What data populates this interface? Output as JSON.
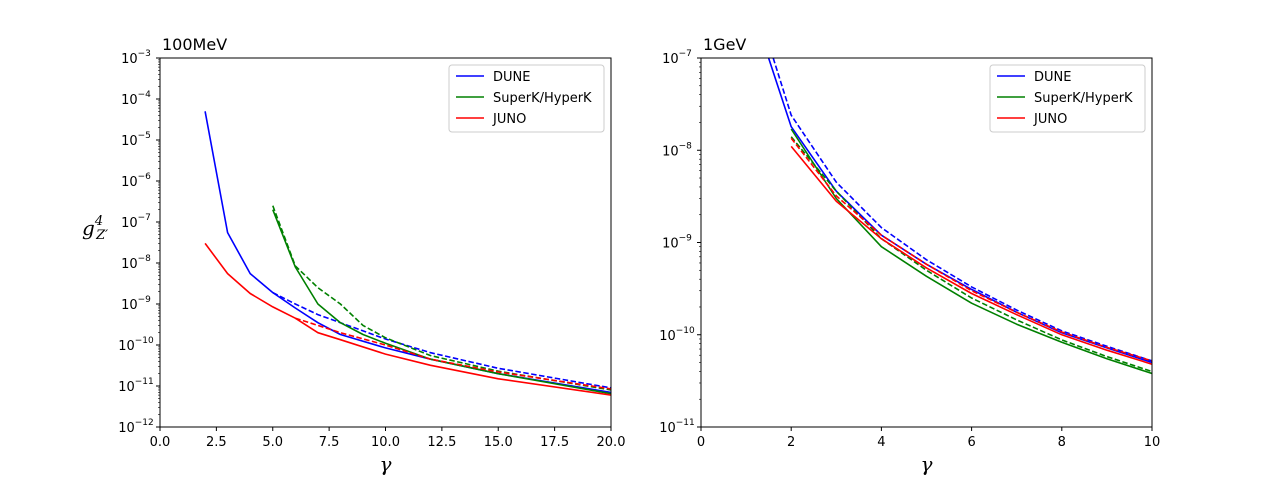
{
  "chart_data": [
    {
      "type": "line",
      "title": "100MeV",
      "xlabel": "γ",
      "ylabel_main": "g",
      "ylabel_sup": "4",
      "ylabel_sub": "Z′",
      "ylabel": "g_Z'^4",
      "xlim": [
        0,
        20
      ],
      "ylim_log10": [
        -12,
        -3
      ],
      "yscale": "log",
      "xticks": [
        0,
        2.5,
        5,
        7.5,
        10,
        12.5,
        15,
        17.5,
        20
      ],
      "xtick_labels": [
        "0.0",
        "2.5",
        "5.0",
        "7.5",
        "10.0",
        "12.5",
        "15.0",
        "17.5",
        "20.0"
      ],
      "yticks_exp": [
        -12,
        -11,
        -10,
        -9,
        -8,
        -7,
        -6,
        -5,
        -4,
        -3
      ],
      "legend_position": "top-right",
      "series": [
        {
          "name": "DUNE",
          "color": "#0000ff",
          "style": "solid",
          "x": [
            2,
            3,
            4,
            5,
            6,
            7,
            8,
            10,
            12,
            15,
            20
          ],
          "y": [
            5e-05,
            5.5e-08,
            5.5e-09,
            1.9e-09,
            8e-10,
            3.5e-10,
            1.8e-10,
            8.5e-11,
            4.5e-11,
            2e-11,
            7e-12
          ]
        },
        {
          "name": "DUNE",
          "color": "#0000ff",
          "style": "dashed",
          "x": [
            5,
            6,
            7,
            8,
            10,
            12,
            15,
            20
          ],
          "y": [
            1.9e-09,
            1e-09,
            5.5e-10,
            3.5e-10,
            1.4e-10,
            6.5e-11,
            2.7e-11,
            9e-12
          ]
        },
        {
          "name": "SuperK/HyperK",
          "color": "#008000",
          "style": "solid",
          "x": [
            5,
            6,
            7,
            8,
            9,
            10,
            12,
            15,
            20
          ],
          "y": [
            2e-07,
            8e-09,
            1e-09,
            3.5e-10,
            1.8e-10,
            1.1e-10,
            4.5e-11,
            2e-11,
            6.5e-12
          ]
        },
        {
          "name": "SuperK/HyperK",
          "color": "#008000",
          "style": "dashed",
          "x": [
            5,
            6,
            7,
            8,
            9,
            10,
            12,
            15,
            20
          ],
          "y": [
            2.5e-07,
            8.5e-09,
            2.5e-09,
            1e-09,
            3e-10,
            1.5e-10,
            5.5e-11,
            2.3e-11,
            8e-12
          ]
        },
        {
          "name": "JUNO",
          "color": "#ff0000",
          "style": "solid",
          "x": [
            2,
            3,
            4,
            5,
            6,
            7,
            8,
            10,
            12,
            15,
            20
          ],
          "y": [
            3e-08,
            5.5e-09,
            1.8e-09,
            8.5e-10,
            4.5e-10,
            2e-10,
            1.35e-10,
            6e-11,
            3.2e-11,
            1.5e-11,
            6e-12
          ]
        },
        {
          "name": "JUNO",
          "color": "#ff0000",
          "style": "dashed",
          "x": [
            6,
            7,
            8,
            10,
            12,
            15,
            20
          ],
          "y": [
            4.5e-10,
            3e-10,
            2e-10,
            1e-10,
            4.5e-11,
            2.2e-11,
            8.5e-12
          ]
        }
      ]
    },
    {
      "type": "line",
      "title": "1GeV",
      "xlabel": "γ",
      "xlim": [
        0,
        10
      ],
      "ylim_log10": [
        -11,
        -7
      ],
      "yscale": "log",
      "xticks": [
        0,
        2,
        4,
        6,
        8,
        10
      ],
      "xtick_labels": [
        "0",
        "2",
        "4",
        "6",
        "8",
        "10"
      ],
      "yticks_exp": [
        -11,
        -10,
        -9,
        -8,
        -7
      ],
      "legend_position": "top-right",
      "series": [
        {
          "name": "DUNE",
          "color": "#0000ff",
          "style": "solid",
          "x": [
            1.5,
            2,
            3,
            4,
            5,
            6,
            7,
            8,
            9,
            10
          ],
          "y": [
            1e-07,
            1.8e-08,
            3.6e-09,
            1.2e-09,
            5.8e-10,
            3.1e-10,
            1.75e-10,
            1.05e-10,
            7.2e-11,
            5e-11
          ]
        },
        {
          "name": "DUNE",
          "color": "#0000ff",
          "style": "dashed",
          "x": [
            1.6,
            2,
            3,
            4,
            5,
            6,
            7,
            8,
            9,
            10
          ],
          "y": [
            1e-07,
            2.4e-08,
            4.5e-09,
            1.45e-09,
            6.5e-10,
            3.3e-10,
            1.85e-10,
            1.1e-10,
            7.5e-11,
            5.2e-11
          ]
        },
        {
          "name": "SuperK/HyperK",
          "color": "#008000",
          "style": "solid",
          "x": [
            2,
            3,
            4,
            5,
            6,
            7,
            8,
            9,
            10
          ],
          "y": [
            1.7e-08,
            3e-09,
            9e-10,
            4.3e-10,
            2.2e-10,
            1.3e-10,
            8.3e-11,
            5.5e-11,
            3.8e-11
          ]
        },
        {
          "name": "SuperK/HyperK",
          "color": "#008000",
          "style": "dashed",
          "x": [
            2,
            3,
            4,
            5,
            6,
            7,
            8,
            9,
            10
          ],
          "y": [
            1.4e-08,
            3.6e-09,
            1.1e-09,
            5e-10,
            2.5e-10,
            1.45e-10,
            8.8e-11,
            5.8e-11,
            4e-11
          ]
        },
        {
          "name": "JUNO",
          "color": "#ff0000",
          "style": "solid",
          "x": [
            2,
            3,
            4,
            5,
            6,
            7,
            8,
            9,
            10
          ],
          "y": [
            1.1e-08,
            2.8e-09,
            1.1e-09,
            5.3e-10,
            2.8e-10,
            1.65e-10,
            1e-10,
            6.8e-11,
            4.8e-11
          ]
        },
        {
          "name": "JUNO",
          "color": "#ff0000",
          "style": "dashed",
          "x": [
            2,
            3,
            4,
            5,
            6,
            7,
            8,
            9,
            10
          ],
          "y": [
            1.35e-08,
            3.2e-09,
            1.2e-09,
            5.8e-10,
            3e-10,
            1.75e-10,
            1.07e-10,
            7.3e-11,
            5.2e-11
          ]
        }
      ]
    }
  ]
}
